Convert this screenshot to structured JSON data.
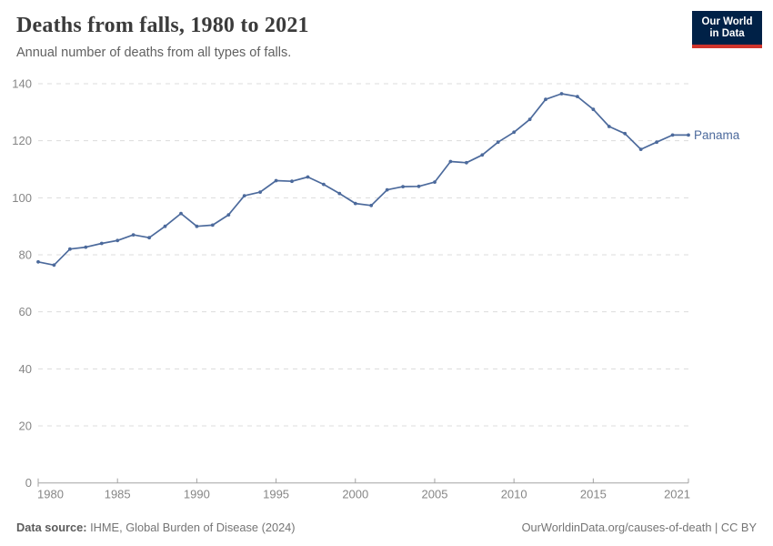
{
  "header": {
    "title": "Deaths from falls, 1980 to 2021",
    "subtitle": "Annual number of deaths from all types of falls.",
    "logo": {
      "line1": "Our World",
      "line2": "in Data"
    }
  },
  "chart_data": {
    "type": "line",
    "title": "Deaths from falls, 1980 to 2021",
    "xlabel": "",
    "ylabel": "",
    "xlim": [
      1980,
      2021
    ],
    "ylim": [
      0,
      140
    ],
    "x_ticks": [
      1980,
      1985,
      1990,
      1995,
      2000,
      2005,
      2010,
      2015,
      2021
    ],
    "y_ticks": [
      0,
      20,
      40,
      60,
      80,
      100,
      120,
      140
    ],
    "grid": "horizontal-dashed",
    "legend_position": "end-of-line-label",
    "series": [
      {
        "name": "Panama",
        "color": "#4C6A9C",
        "x": [
          1980,
          1981,
          1982,
          1983,
          1984,
          1985,
          1986,
          1987,
          1988,
          1989,
          1990,
          1991,
          1992,
          1993,
          1994,
          1995,
          1996,
          1997,
          1998,
          1999,
          2000,
          2001,
          2002,
          2003,
          2004,
          2005,
          2006,
          2007,
          2008,
          2009,
          2010,
          2011,
          2012,
          2013,
          2014,
          2015,
          2016,
          2017,
          2018,
          2019,
          2020,
          2021
        ],
        "values": [
          77.5,
          76.4,
          82,
          82.7,
          84,
          85,
          87,
          86,
          90,
          94.5,
          90,
          90.4,
          94,
          100.7,
          102,
          106,
          105.8,
          107.3,
          104.7,
          101.5,
          98,
          97.3,
          102.8,
          103.9,
          104,
          105.5,
          112.7,
          112.3,
          115,
          119.5,
          123,
          127.5,
          134.5,
          136.5,
          135.5,
          131,
          125,
          122.5,
          117,
          119.5,
          122,
          122
        ]
      }
    ]
  },
  "colors": {
    "line": "#4C6A9C",
    "entity_label": "#4C6A9C",
    "grid": "#dcdcdc",
    "axis": "#a3a3a3",
    "tick_label": "#868686",
    "logo_bg": "#002147",
    "logo_bar": "#d0342c"
  },
  "footer": {
    "source_label": "Data source:",
    "source_text": " IHME, Global Burden of Disease (2024)",
    "link_text": "OurWorldinData.org/causes-of-death | CC BY"
  }
}
